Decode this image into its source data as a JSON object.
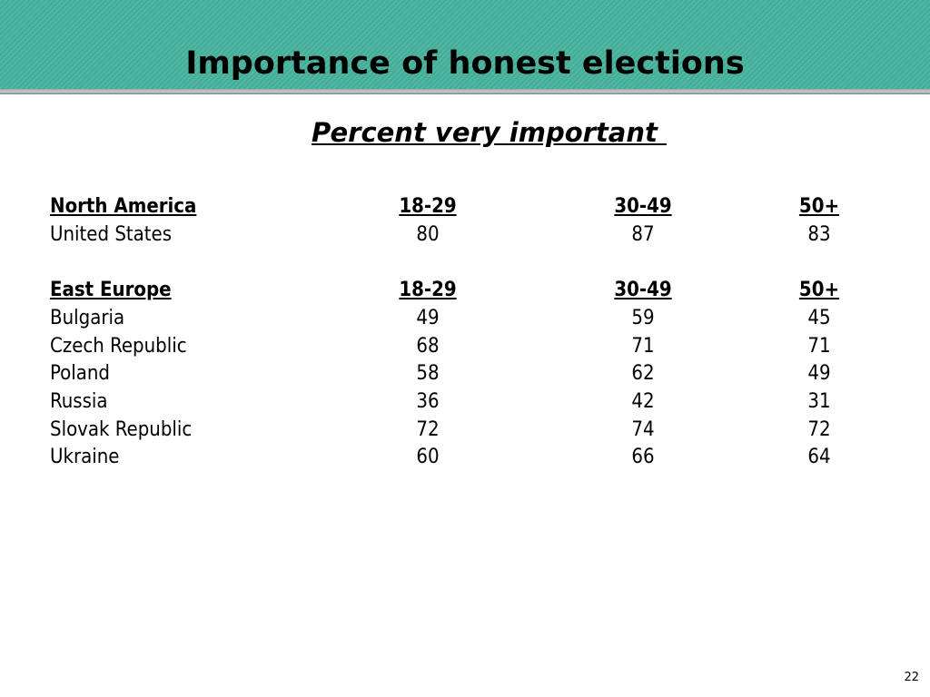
{
  "slide": {
    "title": "Importance of honest elections",
    "subtitle": "Percent very important ",
    "page_number": "22",
    "colors": {
      "header_band": "#46b39c",
      "header_rule": "#9fa3a6"
    }
  },
  "table": {
    "columns": [
      "18-29",
      "30-49",
      "50+"
    ],
    "groups": [
      {
        "name": "North America",
        "rows": [
          {
            "country": "United States",
            "values": [
              "80",
              "87",
              "83"
            ]
          }
        ]
      },
      {
        "name": "East Europe",
        "rows": [
          {
            "country": "Bulgaria",
            "values": [
              "49",
              "59",
              "45"
            ]
          },
          {
            "country": "Czech Republic",
            "values": [
              "68",
              "71",
              "71"
            ]
          },
          {
            "country": "Poland",
            "values": [
              "58",
              "62",
              "49"
            ]
          },
          {
            "country": "Russia",
            "values": [
              "36",
              "42",
              "31"
            ]
          },
          {
            "country": "Slovak Republic",
            "values": [
              "72",
              "74",
              "72"
            ]
          },
          {
            "country": "Ukraine",
            "values": [
              "60",
              "66",
              "64"
            ]
          }
        ]
      }
    ]
  }
}
